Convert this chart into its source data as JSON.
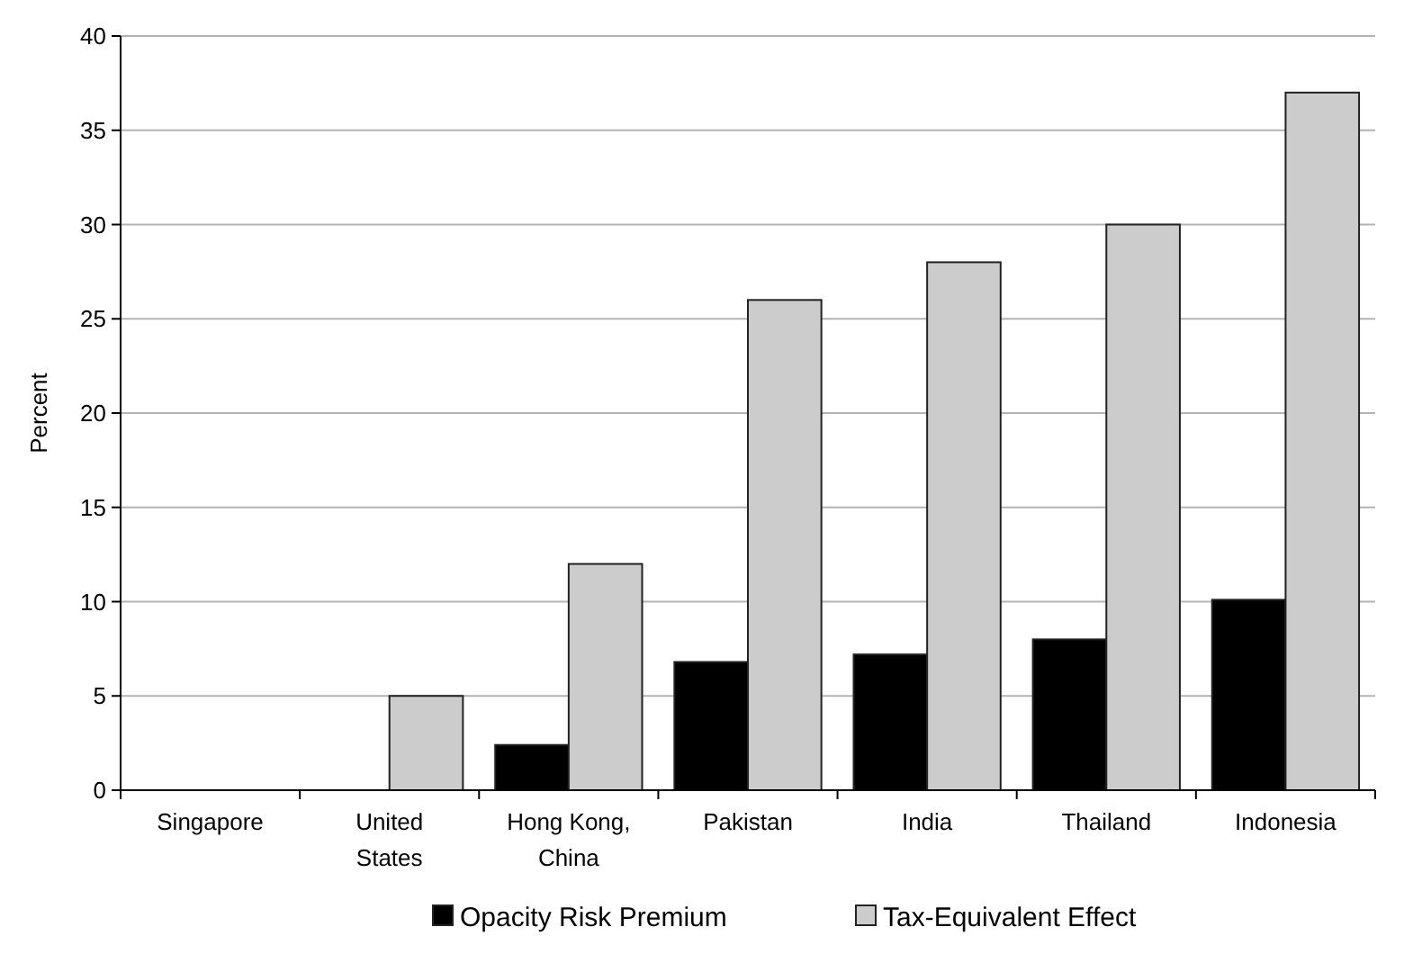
{
  "chart_data": {
    "type": "bar",
    "ylabel": "Percent",
    "categories": [
      "Singapore",
      "United States",
      "Hong Kong, China",
      "Pakistan",
      "India",
      "Thailand",
      "Indonesia"
    ],
    "series": [
      {
        "name": "Opacity Risk Premium",
        "color": "#000000",
        "values": [
          0,
          0,
          2.4,
          6.8,
          7.2,
          8.0,
          10.1
        ]
      },
      {
        "name": "Tax-Equivalent Effect",
        "color": "#cccccc",
        "values": [
          0,
          5,
          12,
          26,
          28,
          30,
          37
        ]
      }
    ],
    "ylim": [
      0,
      40
    ],
    "yticks": [
      0,
      5,
      10,
      15,
      20,
      25,
      30,
      35,
      40
    ],
    "grid": "y",
    "legend": "bottom"
  }
}
